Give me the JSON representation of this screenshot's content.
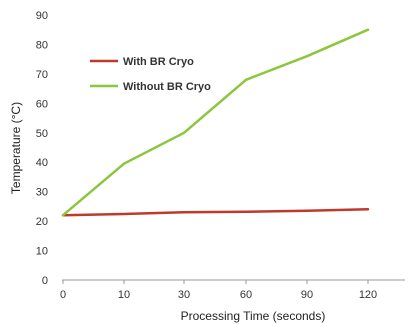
{
  "chart_data": {
    "type": "line",
    "categories": [
      "0",
      "10",
      "30",
      "60",
      "90",
      "120"
    ],
    "xlabel": "Processing Time (seconds)",
    "ylabel": "Temperature (°C)",
    "ylim": [
      0,
      90
    ],
    "yticks": [
      0,
      10,
      20,
      30,
      40,
      50,
      60,
      70,
      80,
      90
    ],
    "grid": false,
    "legend_position": "top-left",
    "series": [
      {
        "name": "With BR Cryo",
        "color": "#c0392b",
        "values": [
          22,
          22.4,
          23,
          23.2,
          23.5,
          24
        ]
      },
      {
        "name": "Without BR Cryo",
        "color": "#8cc63f",
        "values": [
          22,
          39.5,
          50,
          68,
          76,
          85
        ]
      }
    ]
  }
}
